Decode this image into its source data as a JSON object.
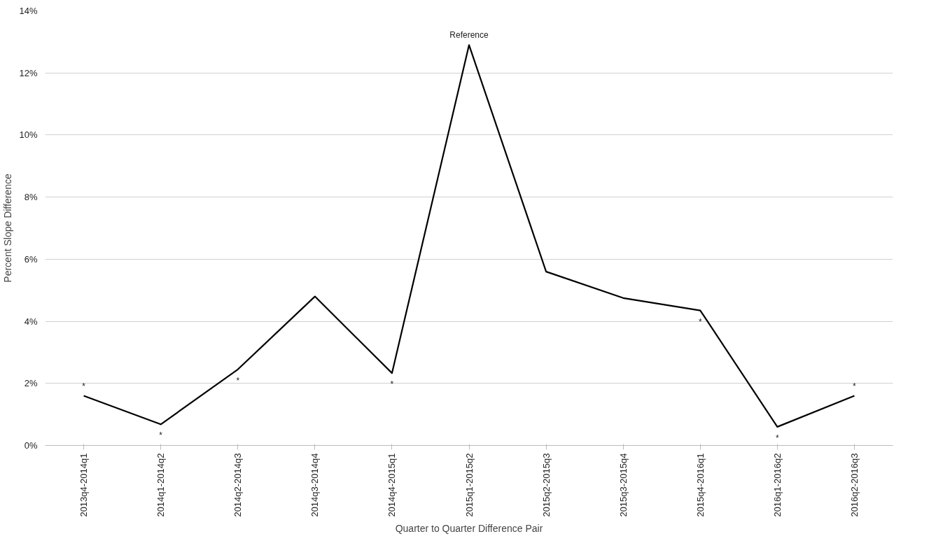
{
  "chart_data": {
    "type": "line",
    "xlabel": "Quarter to Quarter Difference Pair",
    "ylabel": "Percent Slope Difference",
    "categories": [
      "2013q4-2014q1",
      "2014q1-2014q2",
      "2014q2-2014q3",
      "2014q3-2014q4",
      "2014q4-2015q1",
      "2015q1-2015q2",
      "2015q2-2015q3",
      "2015q3-2015q4",
      "2015q4-2016q1",
      "2016q1-2016q2",
      "2016q2-2016q3"
    ],
    "series": [
      {
        "color": "#000000",
        "values": [
          1.6,
          0.68,
          2.45,
          4.8,
          2.33,
          12.9,
          5.6,
          4.75,
          4.35,
          0.6,
          1.6
        ],
        "value_labels": [
          "*",
          "*",
          "*",
          null,
          "*",
          "Reference",
          null,
          null,
          "*",
          "*",
          "*"
        ]
      }
    ],
    "ylim": [
      0,
      14
    ],
    "yticks": [
      {
        "value": 0,
        "label": "0%"
      },
      {
        "value": 2,
        "label": "2%"
      },
      {
        "value": 4,
        "label": "4%"
      },
      {
        "value": 6,
        "label": "6%"
      },
      {
        "value": 8,
        "label": "8%"
      },
      {
        "value": 10,
        "label": "10%"
      },
      {
        "value": 12,
        "label": "12%"
      },
      {
        "value": 14,
        "label": "14%"
      }
    ],
    "grid": "y",
    "marker": "none",
    "line_style": "solid"
  }
}
